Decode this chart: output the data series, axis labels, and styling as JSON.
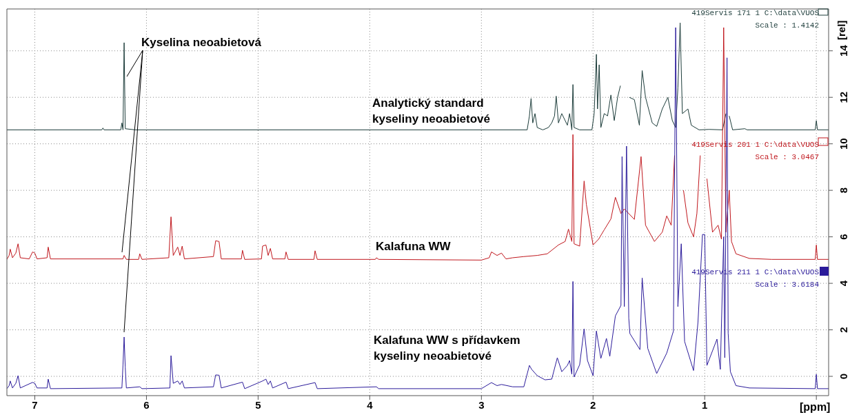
{
  "chart_data": {
    "type": "line",
    "xlabel": "[ppm]",
    "ylabel": "[rel]",
    "xlim": [
      7.25,
      -0.11
    ],
    "xticks": [
      7,
      6,
      5,
      4,
      3,
      2,
      1,
      {
        "value": 0,
        "label": null
      }
    ],
    "ylim": [
      -0.83,
      15.8
    ],
    "yticks": [
      0,
      2,
      4,
      6,
      8,
      10,
      12,
      14
    ],
    "grid": true,
    "line_style": "solid",
    "marker": "none",
    "annotations": [
      {
        "text": "Kyselina neoabietová",
        "x": 6.2,
        "y": 14.35
      },
      "Analytický standard kyseliny neoabietové",
      "Kalafuna WW",
      "Kalafuna WW s přídavkem kyseliny neoabietové",
      "419Servis 171 1 C:\\data\\VUOS",
      "Scale : 1.4142",
      "419Servis 201 1 C:\\data\\VUOS",
      "Scale : 3.0467",
      "419Servis 211 1 C:\\data\\VUOS",
      "Scale : 3.6184"
    ],
    "series": [
      {
        "color": "#1c3c3a",
        "x": [
          7.25,
          6.4,
          6.39,
          6.38,
          6.23,
          6.22,
          6.21,
          6.2,
          6.19,
          6.1,
          2.59,
          2.57,
          2.555,
          2.54,
          2.52,
          2.5,
          2.45,
          2.4,
          2.37,
          2.345,
          2.33,
          2.31,
          2.28,
          2.25,
          2.23,
          2.21,
          2.19,
          2.18,
          2.17,
          2.12,
          2.01,
          1.99,
          1.97,
          1.96,
          1.945,
          1.93,
          1.9,
          1.87,
          1.84,
          1.81,
          1.78,
          1.755,
          1.74,
          1.69,
          1.675,
          1.63,
          1.585,
          1.56,
          1.53,
          1.47,
          1.43,
          1.38,
          1.33,
          1.29,
          1.26,
          1.24,
          1.22,
          1.2,
          1.15,
          1.12,
          1.05,
          0.96,
          0.84,
          0.81,
          0.8,
          0.78,
          0.75,
          0.64,
          0.62,
          0.01,
          0.0,
          -0.01,
          -0.11
        ],
        "values": [
          10.6,
          10.6,
          10.68,
          10.6,
          10.6,
          10.9,
          10.6,
          14.35,
          10.65,
          10.6,
          10.6,
          11.2,
          11.95,
          10.9,
          11.3,
          10.7,
          10.6,
          10.7,
          10.9,
          11.2,
          12.05,
          10.9,
          11.3,
          11.0,
          10.8,
          11.3,
          10.6,
          12.55,
          10.7,
          10.6,
          10.6,
          11.3,
          13.85,
          11.5,
          13.4,
          10.7,
          11.3,
          11.2,
          12.1,
          11.0,
          12.0,
          12.5,
          null,
          null,
          12.0,
          11.9,
          10.8,
          13.15,
          12.0,
          10.9,
          10.75,
          11.5,
          12.0,
          11.0,
          10.7,
          12.4,
          15.2,
          11.3,
          11.5,
          10.8,
          10.6,
          10.62,
          10.6,
          11.3,
          null,
          11.2,
          10.6,
          10.65,
          10.6,
          10.6,
          11.0,
          10.6,
          10.6
        ]
      },
      {
        "color": "#c0161c",
        "x": [
          7.25,
          7.23,
          7.22,
          7.2,
          7.17,
          7.15,
          7.13,
          7.05,
          7.02,
          7.0,
          6.98,
          6.89,
          6.88,
          6.86,
          6.21,
          6.2,
          6.18,
          6.07,
          6.06,
          6.04,
          5.8,
          5.78,
          5.76,
          5.72,
          5.7,
          5.68,
          5.66,
          5.4,
          5.38,
          5.35,
          5.33,
          5.15,
          5.14,
          5.12,
          4.97,
          4.96,
          4.93,
          4.91,
          4.89,
          4.87,
          4.76,
          4.75,
          4.73,
          4.5,
          4.49,
          4.47,
          3.95,
          3.94,
          3.92,
          3.0,
          2.93,
          2.91,
          2.86,
          2.82,
          2.78,
          2.72,
          2.62,
          2.5,
          2.41,
          2.31,
          2.25,
          2.22,
          2.19,
          2.18,
          2.17,
          2.12,
          2.08,
          2.06,
          2.0,
          1.95,
          1.9,
          1.84,
          1.8,
          1.75,
          1.72,
          1.63,
          1.57,
          1.53,
          1.45,
          1.38,
          1.34,
          1.3,
          1.27,
          1.25,
          1.21,
          1.19,
          1.15,
          1.1,
          1.07,
          1.04,
          1.03,
          1.0,
          0.98,
          0.93,
          0.88,
          0.85,
          0.83,
          0.81,
          0.78,
          0.76,
          0.72,
          0.6,
          0.4,
          0.01,
          0.0,
          -0.01,
          -0.11
        ],
        "values": [
          5.03,
          5.2,
          5.47,
          5.1,
          5.3,
          5.7,
          5.1,
          5.05,
          5.35,
          5.3,
          5.05,
          5.1,
          5.56,
          5.05,
          5.05,
          5.2,
          5.03,
          5.03,
          5.27,
          5.03,
          5.1,
          6.86,
          5.2,
          5.56,
          5.2,
          5.6,
          5.05,
          5.15,
          5.83,
          5.8,
          5.05,
          5.05,
          5.42,
          5.03,
          5.05,
          5.6,
          5.65,
          5.2,
          5.5,
          5.05,
          5.05,
          5.35,
          5.03,
          5.03,
          5.4,
          5.03,
          5.03,
          5.1,
          5.03,
          5.0,
          5.1,
          5.35,
          5.2,
          5.3,
          5.05,
          5.1,
          5.15,
          5.2,
          5.27,
          5.65,
          5.8,
          6.33,
          5.8,
          10.4,
          5.7,
          5.6,
          8.4,
          7.4,
          5.65,
          5.9,
          6.3,
          6.77,
          7.7,
          7.0,
          7.2,
          6.75,
          9.45,
          6.5,
          5.8,
          6.2,
          6.9,
          6.5,
          9.5,
          null,
          null,
          8.0,
          6.6,
          6.0,
          7.0,
          9.5,
          null,
          null,
          8.5,
          6.2,
          6.5,
          5.9,
          15.0,
          6.2,
          8.0,
          5.8,
          5.27,
          5.07,
          5.03,
          5.03,
          5.65,
          5.03,
          5.03
        ]
      },
      {
        "color": "#2a1a9a",
        "x": [
          7.25,
          7.23,
          7.22,
          7.2,
          7.17,
          7.15,
          7.13,
          7.02,
          7.0,
          6.98,
          6.89,
          6.88,
          6.86,
          6.22,
          6.21,
          6.2,
          6.19,
          6.18,
          6.06,
          6.04,
          5.79,
          5.78,
          5.76,
          5.72,
          5.7,
          5.68,
          5.66,
          5.4,
          5.38,
          5.35,
          5.33,
          5.14,
          5.12,
          4.96,
          4.93,
          4.91,
          4.89,
          4.87,
          4.75,
          4.73,
          4.49,
          4.47,
          3.94,
          3.92,
          3.0,
          2.91,
          2.86,
          2.82,
          2.72,
          2.62,
          2.57,
          2.55,
          2.5,
          2.43,
          2.37,
          2.32,
          2.28,
          2.23,
          2.21,
          2.19,
          2.18,
          2.17,
          2.12,
          2.08,
          2.05,
          2.0,
          1.97,
          1.93,
          1.88,
          1.85,
          1.8,
          1.75,
          1.74,
          1.72,
          1.7,
          1.68,
          1.67,
          1.58,
          1.56,
          1.51,
          1.43,
          1.34,
          1.28,
          1.26,
          1.24,
          1.21,
          1.18,
          1.1,
          1.06,
          1.02,
          1.0,
          0.98,
          0.89,
          0.86,
          0.83,
          0.82,
          0.8,
          0.79,
          0.77,
          0.72,
          0.6,
          0.01,
          0.0,
          -0.01,
          -0.11
        ],
        "values": [
          -0.53,
          -0.4,
          -0.2,
          -0.5,
          -0.3,
          0.03,
          -0.5,
          -0.26,
          -0.3,
          -0.5,
          -0.5,
          -0.12,
          -0.53,
          -0.5,
          0.5,
          1.69,
          0.4,
          -0.5,
          -0.45,
          -0.53,
          -0.5,
          0.89,
          -0.3,
          -0.2,
          -0.35,
          -0.2,
          -0.5,
          -0.45,
          0.06,
          0.05,
          -0.5,
          -0.25,
          -0.53,
          -0.2,
          -0.12,
          -0.35,
          -0.2,
          -0.5,
          -0.25,
          -0.53,
          -0.27,
          -0.53,
          -0.45,
          -0.53,
          -0.53,
          -0.27,
          -0.4,
          -0.35,
          -0.45,
          -0.45,
          0.47,
          0.3,
          0.03,
          -0.15,
          -0.12,
          0.8,
          0.2,
          0.47,
          0.68,
          0.09,
          4.08,
          -0.03,
          0.5,
          2.04,
          0.68,
          0.03,
          1.95,
          0.77,
          1.63,
          0.86,
          2.6,
          3.05,
          9.45,
          3.0,
          9.9,
          2.5,
          1.84,
          1.15,
          4.23,
          1.2,
          0.12,
          1.0,
          1.95,
          15.0,
          3.0,
          5.7,
          1.5,
          0.25,
          2.34,
          6.1,
          6.1,
          0.47,
          1.6,
          0.3,
          6.0,
          0.8,
          13.7,
          1.86,
          0.2,
          -0.4,
          -0.5,
          -0.53,
          0.09,
          -0.53,
          -0.53
        ]
      }
    ]
  }
}
